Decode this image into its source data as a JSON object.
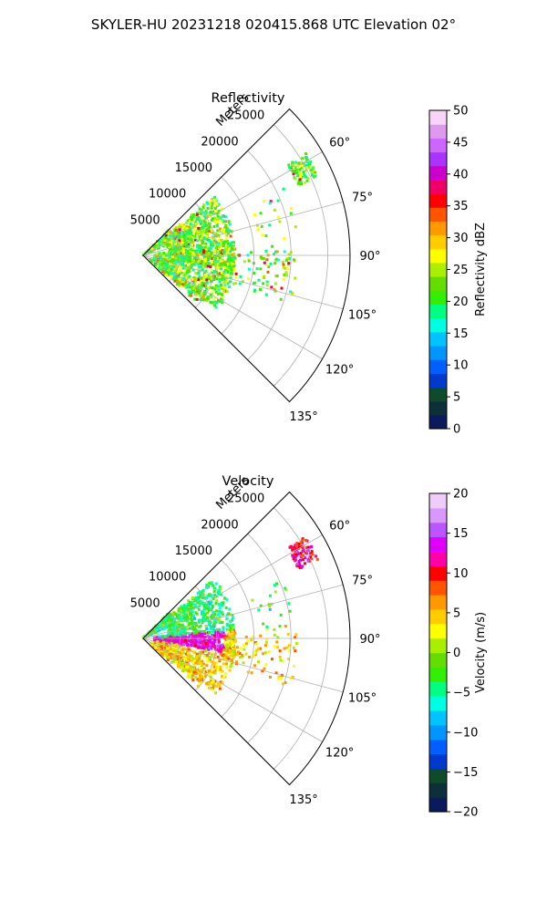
{
  "figure_title": "SKYLER-HU  20231218  020415.868 UTC Elevation 02°",
  "chart_data": [
    {
      "type": "polar-sector",
      "title": "Reflectivity",
      "radial_axis_label": "Meters",
      "radial_ticks": [
        "5000",
        "10000",
        "15000",
        "20000",
        "25000"
      ],
      "radial_tick_values": [
        5000,
        10000,
        15000,
        20000,
        25000
      ],
      "radial_max_m": 28000,
      "azimuth_range_deg": [
        45,
        135
      ],
      "azimuth_ticks": [
        "60°",
        "75°",
        "90°",
        "105°",
        "120°",
        "135°"
      ],
      "azimuth_tick_values": [
        60,
        75,
        90,
        105,
        120,
        135
      ],
      "grid": true,
      "colorbar": {
        "label": "Reflectivity dBZ",
        "ticks": [
          "0",
          "5",
          "10",
          "15",
          "20",
          "25",
          "30",
          "35",
          "40",
          "45",
          "50"
        ],
        "range": [
          0,
          50
        ]
      }
    },
    {
      "type": "polar-sector",
      "title": "Velocity",
      "radial_axis_label": "Meters",
      "radial_ticks": [
        "5000",
        "10000",
        "15000",
        "20000",
        "25000"
      ],
      "radial_tick_values": [
        5000,
        10000,
        15000,
        20000,
        25000
      ],
      "radial_max_m": 28000,
      "azimuth_range_deg": [
        45,
        135
      ],
      "azimuth_ticks": [
        "60°",
        "75°",
        "90°",
        "105°",
        "120°",
        "135°"
      ],
      "azimuth_tick_values": [
        60,
        75,
        90,
        105,
        120,
        135
      ],
      "grid": true,
      "colorbar": {
        "label": "Velocity (m/s)",
        "ticks": [
          "−20",
          "−15",
          "−10",
          "−5",
          "0",
          "5",
          "10",
          "15",
          "20"
        ],
        "range": [
          -20,
          20
        ]
      }
    }
  ],
  "reflectivity_colormap": [
    "#0a1a5c",
    "#0d2f3a",
    "#0f4a2a",
    "#003acd",
    "#0060ff",
    "#0095ff",
    "#00c4ff",
    "#00ffe0",
    "#00ff80",
    "#33ee00",
    "#66dd00",
    "#aaee00",
    "#ffff00",
    "#ffcc00",
    "#ff9900",
    "#ff5500",
    "#ff0000",
    "#ee0066",
    "#cc00cc",
    "#aa33ff",
    "#cc66ff",
    "#dd99ee",
    "#f6d5f6"
  ],
  "velocity_colormap": [
    "#0a1a5c",
    "#0d2f3a",
    "#0f4a2a",
    "#003acd",
    "#0060ff",
    "#0095ff",
    "#00c4ff",
    "#00ffe0",
    "#00ff80",
    "#33ee00",
    "#66dd00",
    "#aaee00",
    "#ffff00",
    "#ffcc00",
    "#ff9900",
    "#ff5500",
    "#ff0000",
    "#ff00aa",
    "#dd00ff",
    "#bb55ff",
    "#d899ff",
    "#f0ccf8"
  ]
}
